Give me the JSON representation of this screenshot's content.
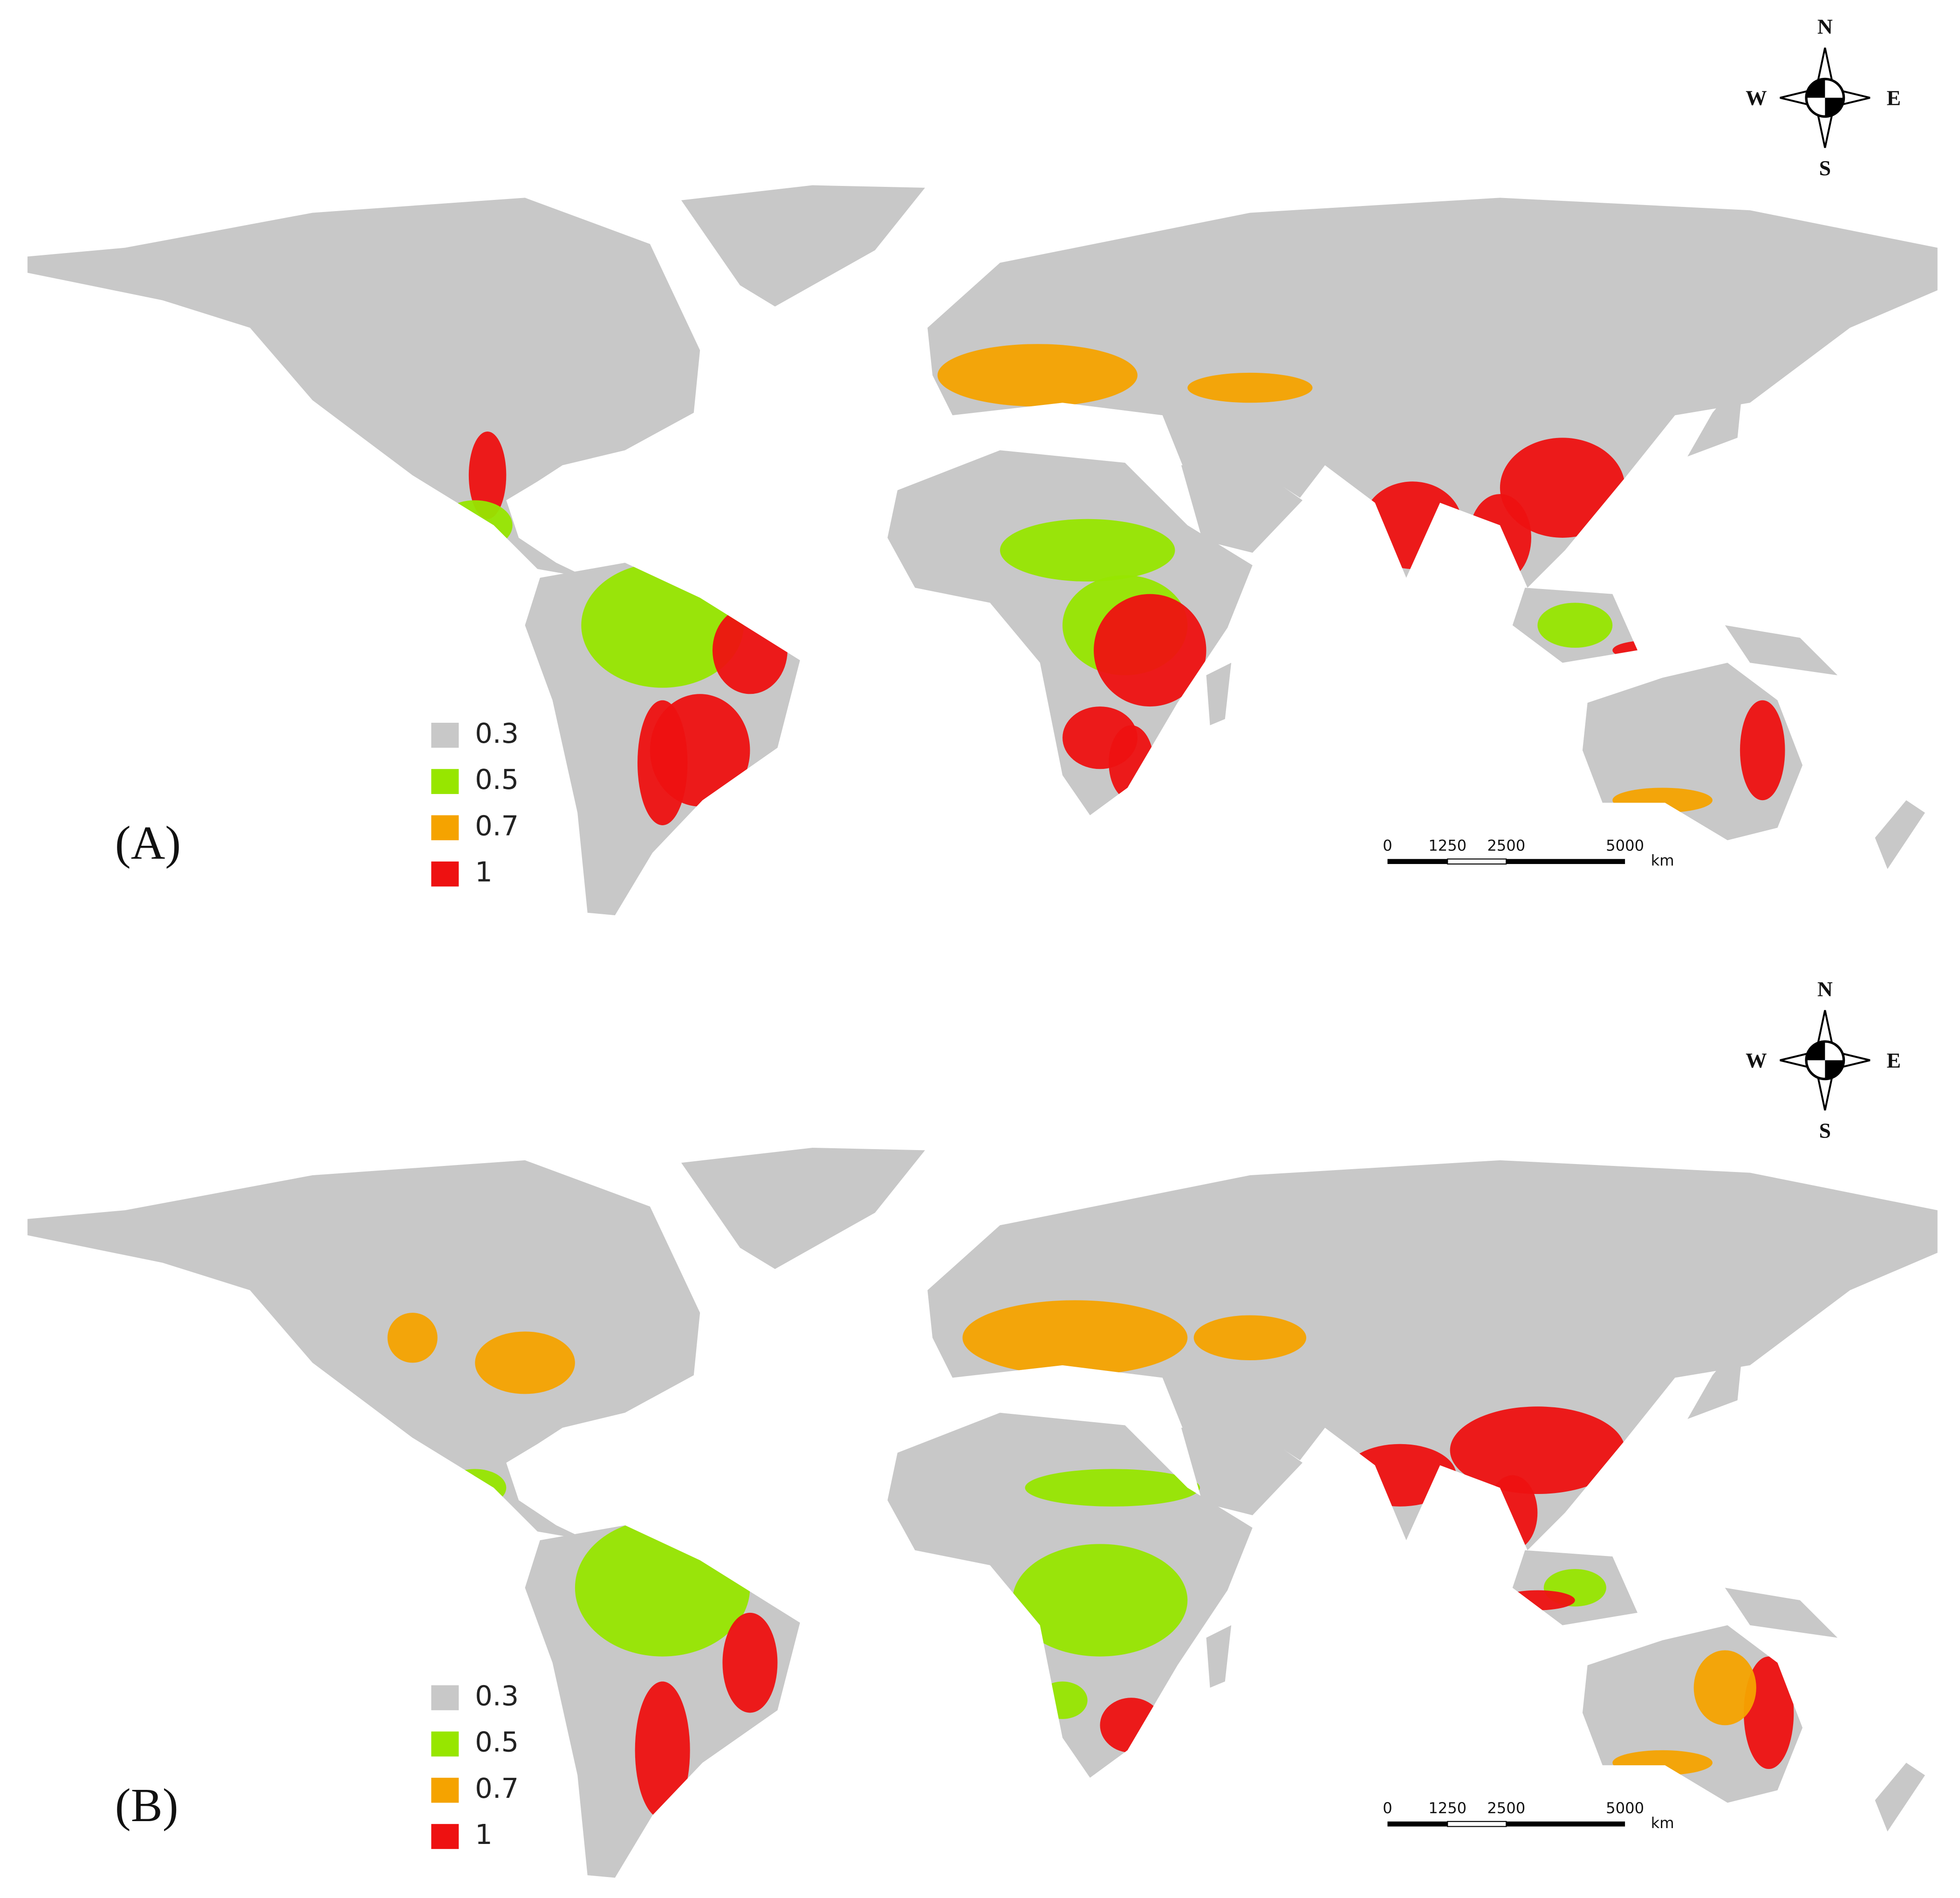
{
  "panels": [
    {
      "label": "(A)",
      "legend": [
        {
          "label": "0.3",
          "color": "#c8c8c8"
        },
        {
          "label": "0.5",
          "color": "#97e600"
        },
        {
          "label": "0.7",
          "color": "#f5a300"
        },
        {
          "label": "1",
          "color": "#ee1111"
        }
      ],
      "compass": {
        "n": "N",
        "e": "E",
        "s": "S",
        "w": "W"
      },
      "scale_bar": {
        "ticks": [
          "0",
          "1250",
          "2500",
          "5000"
        ],
        "unit": "km"
      }
    },
    {
      "label": "(B)",
      "legend": [
        {
          "label": "0.3",
          "color": "#c8c8c8"
        },
        {
          "label": "0.5",
          "color": "#97e600"
        },
        {
          "label": "0.7",
          "color": "#f5a300"
        },
        {
          "label": "1",
          "color": "#ee1111"
        }
      ],
      "compass": {
        "n": "N",
        "e": "E",
        "s": "S",
        "w": "W"
      },
      "scale_bar": {
        "ticks": [
          "0",
          "1250",
          "2500",
          "5000"
        ],
        "unit": "km"
      }
    }
  ]
}
